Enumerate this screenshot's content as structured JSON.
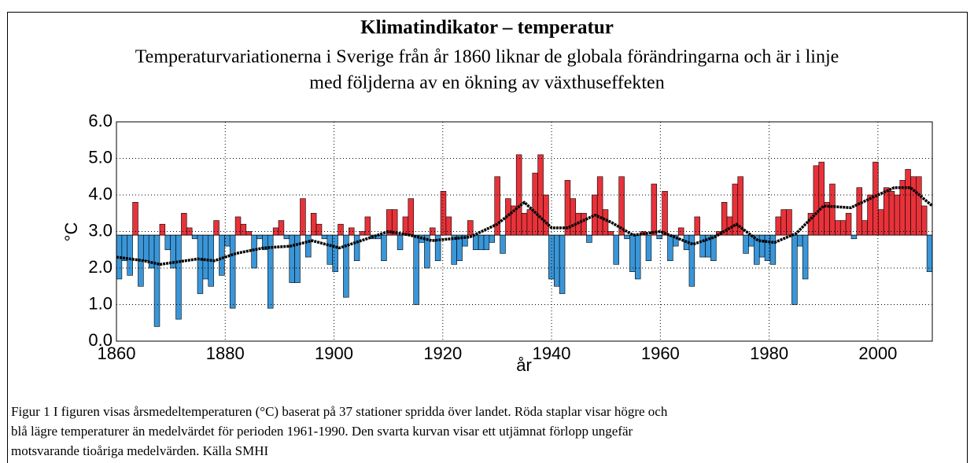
{
  "chart_data": {
    "type": "bar",
    "title": "Klimatindikator – temperatur",
    "subtitle_lines": [
      "Temperaturvariationerna i Sverige från år 1860 liknar de globala förändringarna och är i linje",
      "med följderna av en ökning av växthuseffekten"
    ],
    "x_label": "år",
    "y_label": "°C",
    "xlim": [
      1860,
      2010
    ],
    "xticks": [
      1860,
      1880,
      1900,
      1920,
      1940,
      1960,
      1980,
      2000
    ],
    "ylim": [
      0,
      6
    ],
    "yticks": [
      {
        "value": 0,
        "label": "0.0"
      },
      {
        "value": 1,
        "label": "1.0"
      },
      {
        "value": 2,
        "label": "2.0"
      },
      {
        "value": 3,
        "label": "3.0"
      },
      {
        "value": 4,
        "label": "4.0"
      },
      {
        "value": 5,
        "label": "5.0"
      },
      {
        "value": 6,
        "label": "6.0"
      }
    ],
    "grid": true,
    "baseline": 2.9,
    "above_color": "#e8323a",
    "below_color": "#3a96d8",
    "x": [
      1860,
      1861,
      1862,
      1863,
      1864,
      1865,
      1866,
      1867,
      1868,
      1869,
      1870,
      1871,
      1872,
      1873,
      1874,
      1875,
      1876,
      1877,
      1878,
      1879,
      1880,
      1881,
      1882,
      1883,
      1884,
      1885,
      1886,
      1887,
      1888,
      1889,
      1890,
      1891,
      1892,
      1893,
      1894,
      1895,
      1896,
      1897,
      1898,
      1899,
      1900,
      1901,
      1902,
      1903,
      1904,
      1905,
      1906,
      1907,
      1908,
      1909,
      1910,
      1911,
      1912,
      1913,
      1914,
      1915,
      1916,
      1917,
      1918,
      1919,
      1920,
      1921,
      1922,
      1923,
      1924,
      1925,
      1926,
      1927,
      1928,
      1929,
      1930,
      1931,
      1932,
      1933,
      1934,
      1935,
      1936,
      1937,
      1938,
      1939,
      1940,
      1941,
      1942,
      1943,
      1944,
      1945,
      1946,
      1947,
      1948,
      1949,
      1950,
      1951,
      1952,
      1953,
      1954,
      1955,
      1956,
      1957,
      1958,
      1959,
      1960,
      1961,
      1962,
      1963,
      1964,
      1965,
      1966,
      1967,
      1968,
      1969,
      1970,
      1971,
      1972,
      1973,
      1974,
      1975,
      1976,
      1977,
      1978,
      1979,
      1980,
      1981,
      1982,
      1983,
      1984,
      1985,
      1986,
      1987,
      1988,
      1989,
      1990,
      1991,
      1992,
      1993,
      1994,
      1995,
      1996,
      1997,
      1998,
      1999,
      2000,
      2001,
      2002,
      2003,
      2004,
      2005,
      2006,
      2007,
      2008,
      2009,
      2010
    ],
    "values": [
      1.7,
      2.2,
      1.8,
      3.8,
      1.5,
      2.2,
      2.0,
      0.4,
      3.2,
      2.5,
      2.0,
      0.6,
      3.5,
      3.1,
      2.8,
      1.3,
      1.7,
      1.5,
      3.3,
      1.8,
      2.6,
      0.9,
      3.4,
      3.2,
      3.0,
      2.0,
      2.8,
      2.5,
      0.9,
      3.1,
      3.3,
      2.8,
      1.6,
      1.6,
      3.9,
      2.3,
      3.5,
      3.2,
      2.8,
      2.1,
      1.9,
      3.2,
      1.2,
      3.1,
      2.2,
      3.0,
      3.4,
      2.8,
      2.8,
      2.2,
      3.6,
      3.6,
      2.5,
      3.4,
      3.9,
      1.0,
      2.7,
      2.0,
      3.1,
      2.2,
      4.1,
      3.4,
      2.1,
      2.2,
      2.6,
      3.3,
      2.5,
      2.5,
      2.5,
      2.7,
      4.5,
      2.4,
      3.9,
      3.7,
      5.1,
      3.5,
      3.6,
      4.6,
      5.1,
      4.0,
      1.7,
      1.5,
      1.3,
      4.4,
      3.9,
      3.5,
      3.5,
      2.7,
      4.0,
      4.5,
      3.6,
      3.0,
      2.1,
      4.5,
      2.8,
      1.9,
      1.7,
      3.0,
      2.2,
      4.3,
      2.8,
      4.1,
      2.2,
      2.6,
      3.1,
      2.5,
      1.5,
      3.4,
      2.3,
      2.3,
      2.2,
      3.0,
      3.8,
      3.4,
      4.3,
      4.5,
      2.4,
      2.6,
      2.1,
      2.3,
      2.2,
      2.1,
      3.4,
      3.6,
      3.6,
      1.0,
      2.6,
      1.7,
      3.5,
      4.8,
      4.9,
      3.8,
      4.3,
      3.3,
      3.3,
      3.5,
      2.8,
      4.2,
      3.3,
      4.0,
      4.9,
      3.6,
      4.2,
      4.1,
      4.0,
      4.4,
      4.7,
      4.5,
      4.5,
      3.7,
      1.9
    ],
    "smooth": {
      "color": "#000000",
      "x": [
        1860,
        1865,
        1868,
        1875,
        1878,
        1882,
        1887,
        1892,
        1896,
        1901,
        1906,
        1910,
        1914,
        1918,
        1925,
        1930,
        1935,
        1940,
        1943,
        1948,
        1951,
        1955,
        1960,
        1966,
        1970,
        1974,
        1978,
        1981,
        1985,
        1990,
        1995,
        2000,
        2003,
        2006,
        2010
      ],
      "values": [
        2.3,
        2.2,
        2.1,
        2.25,
        2.2,
        2.4,
        2.55,
        2.6,
        2.75,
        2.55,
        2.8,
        3.0,
        2.9,
        2.75,
        2.85,
        3.2,
        3.8,
        3.1,
        3.1,
        3.45,
        3.25,
        2.9,
        3.0,
        2.65,
        2.85,
        3.2,
        2.75,
        2.7,
        2.95,
        3.7,
        3.65,
        4.0,
        4.2,
        4.2,
        3.7
      ]
    },
    "caption_lines": [
      "Figur 1 I figuren visas årsmedeltemperaturen (°C) baserat på 37 stationer spridda över landet. Röda staplar visar högre och",
      "blå lägre temperaturer än medelvärdet för perioden 1961-1990. Den svarta kurvan visar ett utjämnat förlopp ungefär",
      "motsvarande tioåriga medelvärden.  Källa SMHI"
    ]
  }
}
